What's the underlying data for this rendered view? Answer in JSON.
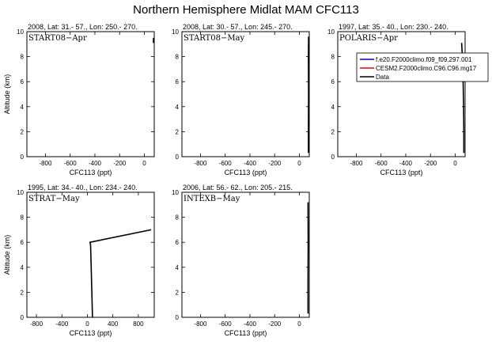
{
  "title": "Northern Hemisphere Midlat MAM CFC113",
  "legend": {
    "entries": [
      {
        "label": "f.e20.F2000climo.f09_f09.297.001",
        "color": "#0000c0"
      },
      {
        "label": "CESM2.F2000climo.C96.C96.mg17",
        "color": "#e00000"
      },
      {
        "label": "Data",
        "color": "#000000"
      }
    ]
  },
  "chart_data": [
    {
      "type": "line",
      "panel_label": "START08−Apr",
      "info": "2008, Lat:  31.- 57., Lon: 250.- 270.",
      "xlabel": "CFC113 (ppt)",
      "ylabel": "Altitude (km)",
      "xlim": [
        -950,
        80
      ],
      "ylim": [
        0,
        10
      ],
      "xticks": [
        -800,
        -600,
        -400,
        -200,
        0
      ],
      "yticks": [
        0,
        2,
        4,
        6,
        8,
        10
      ],
      "show_ylabel": true,
      "series": [
        {
          "color": "#000000",
          "x": [
            73,
            74
          ],
          "y": [
            9.1,
            9.5
          ]
        }
      ]
    },
    {
      "type": "line",
      "panel_label": "START08−May",
      "info": "2008, Lat:  30.- 57., Lon: 245.- 270.",
      "xlabel": "CFC113 (ppt)",
      "ylabel": "Altitude (km)",
      "xlim": [
        -950,
        80
      ],
      "ylim": [
        0,
        10
      ],
      "xticks": [
        -800,
        -600,
        -400,
        -200,
        0
      ],
      "yticks": [
        0,
        2,
        4,
        6,
        8,
        10
      ],
      "show_ylabel": false,
      "series": [
        {
          "color": "#000000",
          "x": [
            73,
            73,
            74,
            73,
            74
          ],
          "y": [
            0.3,
            2.0,
            5.0,
            8.0,
            9.6
          ]
        }
      ]
    },
    {
      "type": "line",
      "panel_label": "POLARIS−Apr",
      "info": "1997, Lat:  35.- 40., Lon: 230.- 240.",
      "xlabel": "CFC113 (ppt)",
      "ylabel": "Altitude (km)",
      "xlim": [
        -950,
        80
      ],
      "ylim": [
        0,
        10
      ],
      "xticks": [
        -800,
        -600,
        -400,
        -200,
        0
      ],
      "yticks": [
        0,
        2,
        4,
        6,
        8,
        10
      ],
      "show_ylabel": false,
      "series": [
        {
          "color": "#000000",
          "x": [
            70,
            70,
            68,
            64,
            58,
            52
          ],
          "y": [
            0.3,
            2.0,
            4.0,
            6.0,
            8.0,
            9.1
          ]
        }
      ]
    },
    {
      "type": "line",
      "panel_label": "STRAT−May",
      "info": "1995, Lat:  34.- 40., Lon: 234.- 240.",
      "xlabel": "CFC113 (ppt)",
      "ylabel": "Altitude (km)",
      "xlim": [
        -950,
        1050
      ],
      "ylim": [
        0,
        10
      ],
      "xticks": [
        -800,
        -400,
        0,
        400,
        800
      ],
      "yticks": [
        0,
        2,
        4,
        6,
        8,
        10
      ],
      "show_ylabel": true,
      "series": [
        {
          "color": "#000000",
          "x": [
            80,
            70,
            60,
            50,
            40,
            1000
          ],
          "y": [
            0.0,
            2.0,
            4.0,
            5.8,
            6.0,
            7.0
          ]
        }
      ]
    },
    {
      "type": "line",
      "panel_label": "INTEXB−May",
      "info": "2006, Lat:  56.- 62., Lon: 205.- 215.",
      "xlabel": "CFC113 (ppt)",
      "ylabel": "Altitude (km)",
      "xlim": [
        -950,
        80
      ],
      "ylim": [
        0,
        10
      ],
      "xticks": [
        -800,
        -600,
        -400,
        -200,
        0
      ],
      "yticks": [
        0,
        2,
        4,
        6,
        8,
        10
      ],
      "show_ylabel": false,
      "series": [
        {
          "color": "#000000",
          "x": [
            70,
            70,
            71,
            70
          ],
          "y": [
            0.3,
            3.0,
            6.0,
            9.2
          ]
        }
      ]
    }
  ]
}
